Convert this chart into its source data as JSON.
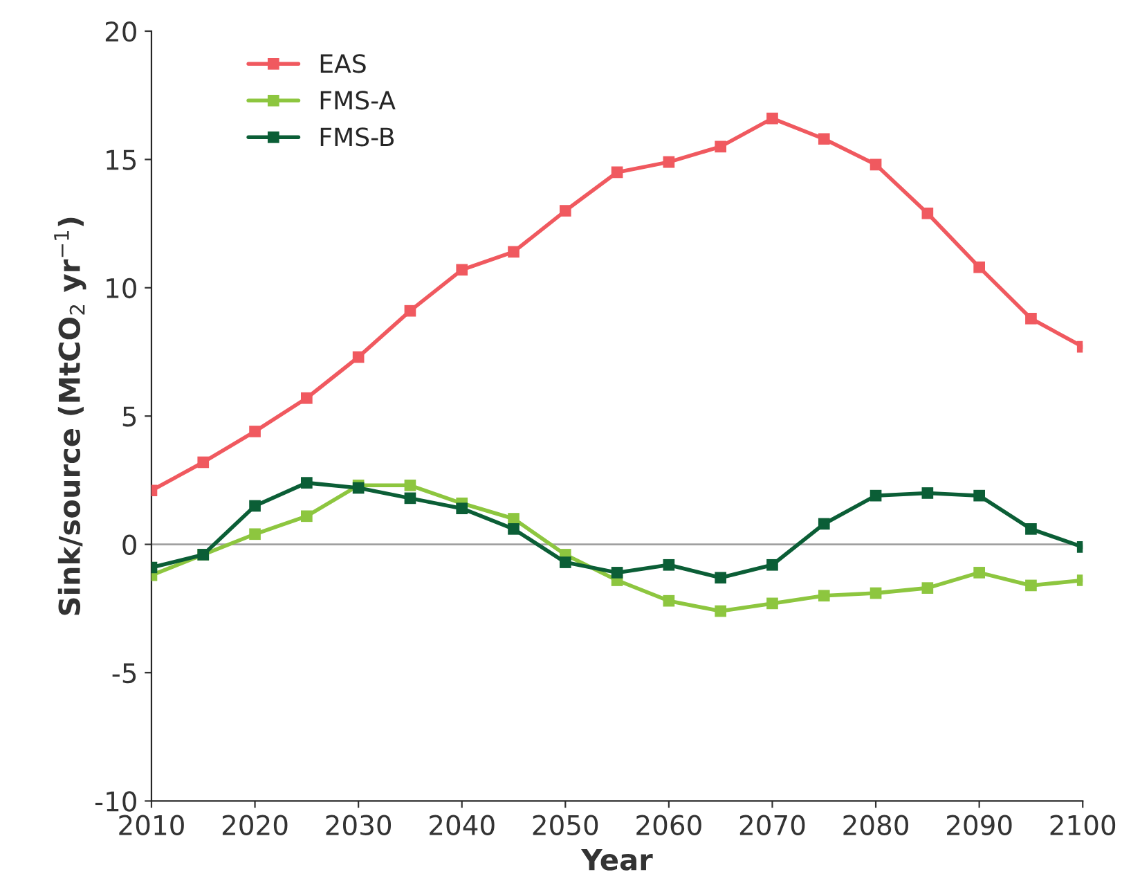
{
  "chart_data": {
    "type": "line",
    "xlabel": "Year",
    "ylabel": "Sink/source (MtCO$_{2}$ yr$^{−1}$)",
    "x": [
      2010,
      2015,
      2020,
      2025,
      2030,
      2035,
      2040,
      2045,
      2050,
      2055,
      2060,
      2065,
      2070,
      2075,
      2080,
      2085,
      2090,
      2095,
      2100
    ],
    "series": [
      {
        "name": "EAS",
        "color": "#f0595f",
        "values": [
          2.1,
          3.2,
          4.4,
          5.7,
          7.3,
          9.1,
          10.7,
          11.4,
          13.0,
          14.5,
          14.9,
          15.5,
          16.6,
          15.8,
          14.8,
          12.9,
          10.8,
          8.8,
          7.7
        ]
      },
      {
        "name": "FMS-A",
        "color": "#8dc63f",
        "values": [
          -1.2,
          -0.4,
          0.4,
          1.1,
          2.3,
          2.3,
          1.6,
          1.0,
          -0.4,
          -1.4,
          -2.2,
          -2.6,
          -2.3,
          -2.0,
          -1.9,
          -1.7,
          -1.1,
          -1.6,
          -1.4
        ]
      },
      {
        "name": "FMS-B",
        "color": "#0b5e36",
        "values": [
          -0.9,
          -0.4,
          1.5,
          2.4,
          2.2,
          1.8,
          1.4,
          0.6,
          -0.7,
          -1.1,
          -0.8,
          -1.3,
          -0.8,
          0.8,
          1.9,
          2.0,
          1.9,
          0.6,
          -0.1
        ]
      }
    ],
    "xlim": [
      2010,
      2100
    ],
    "xticks": [
      2010,
      2020,
      2030,
      2040,
      2050,
      2060,
      2070,
      2080,
      2090,
      2100
    ],
    "ylim": [
      -10,
      20
    ],
    "yticks": [
      {
        "value": -10,
        "label": "-10"
      },
      {
        "value": -5,
        "label": "-5"
      },
      0,
      5,
      10,
      15,
      20
    ],
    "ref_lines": [
      {
        "axis": "y",
        "value": 0,
        "color": "#a0a0a0"
      }
    ],
    "grid": false,
    "legend": "top left",
    "marker": "square",
    "line_style": "solid"
  }
}
